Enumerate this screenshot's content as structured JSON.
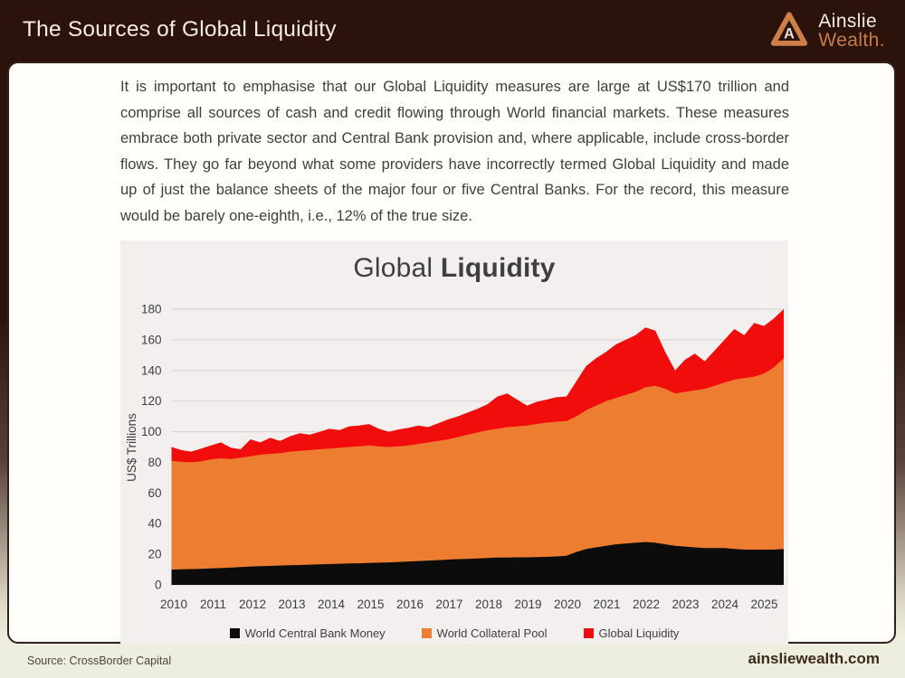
{
  "header": {
    "title": "The Sources of Global Liquidity",
    "brand": {
      "monogram": "A",
      "name_top": "Ainslie",
      "name_bottom": "Wealth",
      "suffix": "."
    }
  },
  "intro": {
    "text": "It is important to emphasise that our Global Liquidity measures are large at US$170 trillion and comprise all sources of cash and credit flowing through World financial markets. These measures embrace both private sector and Central Bank provision and, where applicable, include cross-border flows. They go far beyond what some providers have incorrectly termed Global Liquidity and made up of just the balance sheets of the major four or five Central Banks. For the record, this measure would be barely one-eighth, i.e., 12% of the true size."
  },
  "chart": {
    "title_regular": "Global",
    "title_bold": "Liquidity"
  },
  "chart_data": {
    "type": "area",
    "title": "Global Liquidity",
    "ylabel": "US$ Trillions",
    "ylim": [
      0,
      180
    ],
    "ytick_step": 20,
    "grid": true,
    "legend_position": "bottom",
    "note": "Series values are absolute US$ trillion levels read from the plot; areas are layered back-to-front (Global Liquidity total behind, then Collateral Pool, then Central Bank Money), not stacked.",
    "x_tick_labels": [
      "2010",
      "2011",
      "2012",
      "2013",
      "2014",
      "2015",
      "2016",
      "2017",
      "2018",
      "2019",
      "2020",
      "2021",
      "2022",
      "2023",
      "2024",
      "2025"
    ],
    "x": [
      2010,
      2010.25,
      2010.5,
      2010.75,
      2011,
      2011.25,
      2011.5,
      2011.75,
      2012,
      2012.25,
      2012.5,
      2012.75,
      2013,
      2013.25,
      2013.5,
      2013.75,
      2014,
      2014.25,
      2014.5,
      2014.75,
      2015,
      2015.25,
      2015.5,
      2015.75,
      2016,
      2016.25,
      2016.5,
      2016.75,
      2017,
      2017.25,
      2017.5,
      2017.75,
      2018,
      2018.25,
      2018.5,
      2018.75,
      2019,
      2019.25,
      2019.5,
      2019.75,
      2020,
      2020.25,
      2020.5,
      2020.75,
      2021,
      2021.25,
      2021.5,
      2021.75,
      2022,
      2022.25,
      2022.5,
      2022.75,
      2023,
      2023.25,
      2023.5,
      2023.75,
      2024,
      2024.25,
      2024.5,
      2024.75,
      2025,
      2025.25,
      2025.5
    ],
    "series": [
      {
        "name": "World Central Bank Money",
        "color": "#0c0c0c",
        "values": [
          10,
          10.2,
          10.3,
          10.5,
          10.8,
          11,
          11.3,
          11.6,
          12,
          12.2,
          12.4,
          12.6,
          12.8,
          13,
          13.2,
          13.4,
          13.6,
          13.8,
          14,
          14.1,
          14.3,
          14.5,
          14.7,
          15,
          15.3,
          15.6,
          15.9,
          16.2,
          16.5,
          16.8,
          17,
          17.3,
          17.6,
          17.8,
          17.9,
          18,
          18,
          18.1,
          18.3,
          18.6,
          19,
          21.5,
          23.5,
          24.5,
          25.5,
          26.5,
          27,
          27.5,
          28,
          27.5,
          26.5,
          25.5,
          25,
          24.5,
          24,
          24,
          24,
          23.5,
          23,
          23,
          23,
          23,
          23.5
        ]
      },
      {
        "name": "World Collateral Pool",
        "color": "#ed7d31",
        "values": [
          81,
          80.3,
          80,
          80.6,
          82,
          82.6,
          82.2,
          83,
          84,
          85,
          85.5,
          86,
          87,
          87.5,
          88,
          88.5,
          89,
          89.5,
          90,
          90.5,
          91,
          90.5,
          90,
          90.5,
          91,
          92,
          93,
          94,
          95,
          96.5,
          98,
          99.5,
          101,
          102,
          103,
          103.5,
          104,
          105,
          106,
          106.5,
          107,
          110,
          114,
          117,
          120,
          122,
          124,
          126,
          129,
          130,
          128,
          125,
          126,
          127,
          128,
          130,
          132,
          134,
          135,
          136,
          138,
          142,
          148
        ]
      },
      {
        "name": "Global Liquidity",
        "color": "#f20d0d",
        "values": [
          90,
          88,
          87,
          89,
          91,
          93,
          89.5,
          88.5,
          95,
          93,
          96,
          94,
          97,
          99,
          98,
          100,
          102,
          101,
          103.5,
          104,
          105,
          102,
          100,
          101.5,
          102.5,
          104,
          103,
          105.5,
          108,
          110,
          112.5,
          115,
          118,
          123,
          125,
          121,
          117,
          119.5,
          121,
          122.5,
          123,
          133,
          143,
          148,
          152,
          157,
          160,
          163,
          168,
          166,
          152,
          140,
          147,
          151,
          146,
          153,
          160,
          167,
          163,
          171,
          169,
          174,
          180
        ]
      }
    ]
  },
  "footer": {
    "source": "Source: CrossBorder Capital",
    "site": "ainsliewealth.com"
  },
  "colors": {
    "header_bg": "#2b130c",
    "brand_copper": "#c77b46",
    "panel_bg": "#f2efee",
    "page_bottom": "#edeedd"
  }
}
